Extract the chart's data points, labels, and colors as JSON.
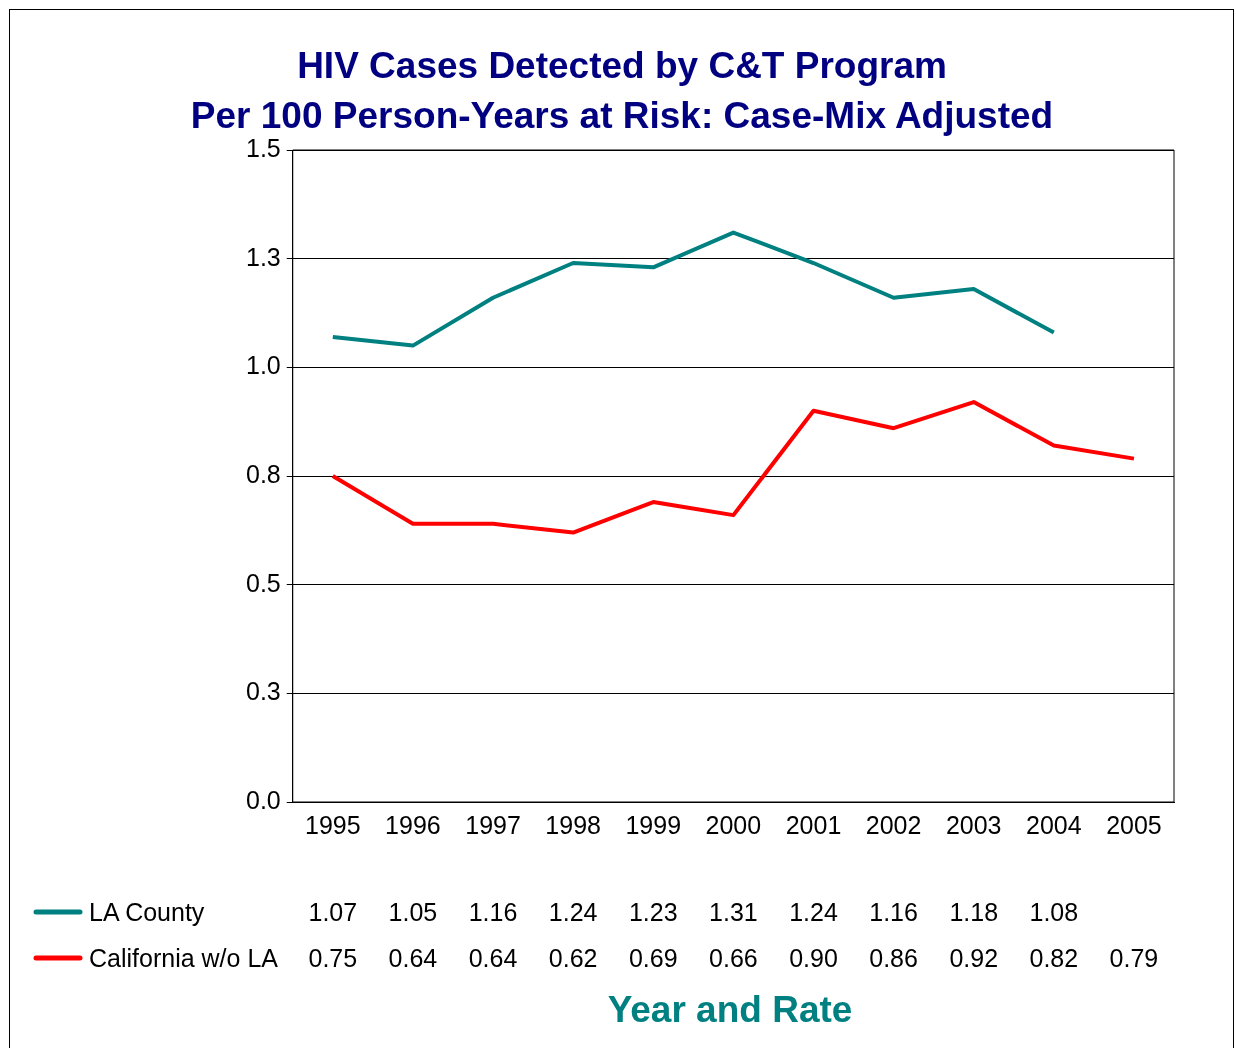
{
  "chart_data": {
    "type": "line",
    "title": "HIV Cases Detected by C&T Program\nPer 100 Person-Years at Risk: Case-Mix Adjusted",
    "xlabel": "Year and Rate",
    "categories": [
      "1995",
      "1996",
      "1997",
      "1998",
      "1999",
      "2000",
      "2001",
      "2002",
      "2003",
      "2004",
      "2005"
    ],
    "series": [
      {
        "name": "LA County",
        "color": "#008080",
        "values": [
          1.07,
          1.05,
          1.16,
          1.24,
          1.23,
          1.31,
          1.24,
          1.16,
          1.18,
          1.08,
          null
        ],
        "value_labels": [
          "1.07",
          "1.05",
          "1.16",
          "1.24",
          "1.23",
          "1.31",
          "1.24",
          "1.16",
          "1.18",
          "1.08",
          null
        ]
      },
      {
        "name": "California w/o LA",
        "color": "#ff0000",
        "values": [
          0.75,
          0.64,
          0.64,
          0.62,
          0.69,
          0.66,
          0.9,
          0.86,
          0.92,
          0.82,
          0.79
        ],
        "value_labels": [
          "0.75",
          "0.64",
          "0.64",
          "0.62",
          "0.69",
          "0.66",
          "0.90",
          "0.86",
          "0.92",
          "0.82",
          "0.79"
        ]
      }
    ],
    "ylim": [
      0,
      1.5
    ],
    "yticks": [
      {
        "value": 0,
        "label": "0.0"
      },
      {
        "value": 0.25,
        "label": "0.3"
      },
      {
        "value": 0.5,
        "label": "0.5"
      },
      {
        "value": 0.75,
        "label": "0.8"
      },
      {
        "value": 1,
        "label": "1.0"
      },
      {
        "value": 1.25,
        "label": "1.3"
      },
      {
        "value": 1.5,
        "label": "1.5"
      }
    ],
    "grid": "y",
    "legend": "bottom",
    "marker": "none",
    "line_style": "solid"
  }
}
